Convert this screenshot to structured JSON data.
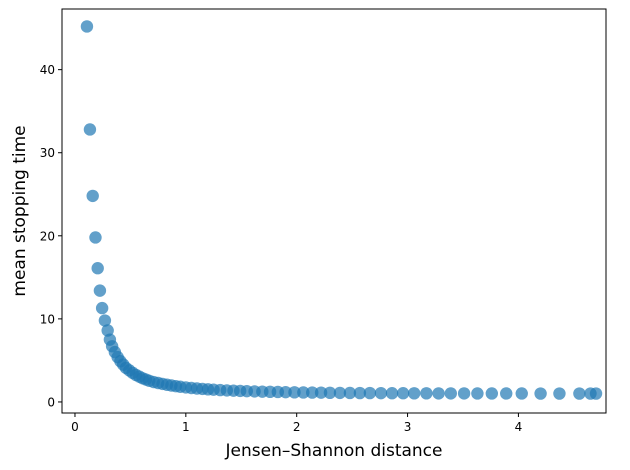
{
  "chart_data": {
    "type": "scatter",
    "title": "",
    "xlabel": "Jensen–Shannon distance",
    "ylabel": "mean stopping time",
    "xlim": [
      -0.117,
      4.79
    ],
    "ylim": [
      -1.33,
      47.3
    ],
    "xticks": [
      0,
      1,
      2,
      3,
      4
    ],
    "yticks": [
      0,
      10,
      20,
      30,
      40
    ],
    "grid": false,
    "color": "#1f77b4",
    "alpha": 0.7,
    "points": [
      [
        0.108,
        45.2
      ],
      [
        0.135,
        32.8
      ],
      [
        0.16,
        24.8
      ],
      [
        0.185,
        19.8
      ],
      [
        0.205,
        16.1
      ],
      [
        0.225,
        13.4
      ],
      [
        0.245,
        11.3
      ],
      [
        0.27,
        9.8
      ],
      [
        0.295,
        8.6
      ],
      [
        0.315,
        7.5
      ],
      [
        0.335,
        6.7
      ],
      [
        0.36,
        6.0
      ],
      [
        0.385,
        5.4
      ],
      [
        0.41,
        4.9
      ],
      [
        0.435,
        4.5
      ],
      [
        0.46,
        4.1
      ],
      [
        0.49,
        3.8
      ],
      [
        0.52,
        3.5
      ],
      [
        0.55,
        3.25
      ],
      [
        0.58,
        3.05
      ],
      [
        0.61,
        2.85
      ],
      [
        0.64,
        2.7
      ],
      [
        0.67,
        2.55
      ],
      [
        0.71,
        2.4
      ],
      [
        0.75,
        2.28
      ],
      [
        0.79,
        2.17
      ],
      [
        0.83,
        2.07
      ],
      [
        0.87,
        1.98
      ],
      [
        0.91,
        1.9
      ],
      [
        0.95,
        1.83
      ],
      [
        1.0,
        1.75
      ],
      [
        1.05,
        1.68
      ],
      [
        1.1,
        1.62
      ],
      [
        1.15,
        1.57
      ],
      [
        1.2,
        1.52
      ],
      [
        1.25,
        1.48
      ],
      [
        1.31,
        1.43
      ],
      [
        1.37,
        1.39
      ],
      [
        1.43,
        1.36
      ],
      [
        1.49,
        1.33
      ],
      [
        1.55,
        1.3
      ],
      [
        1.62,
        1.27
      ],
      [
        1.69,
        1.24
      ],
      [
        1.76,
        1.22
      ],
      [
        1.83,
        1.2
      ],
      [
        1.9,
        1.18
      ],
      [
        1.98,
        1.16
      ],
      [
        2.06,
        1.14
      ],
      [
        2.14,
        1.13
      ],
      [
        2.22,
        1.12
      ],
      [
        2.3,
        1.1
      ],
      [
        2.39,
        1.09
      ],
      [
        2.48,
        1.08
      ],
      [
        2.57,
        1.07
      ],
      [
        2.66,
        1.07
      ],
      [
        2.76,
        1.06
      ],
      [
        2.86,
        1.05
      ],
      [
        2.96,
        1.05
      ],
      [
        3.06,
        1.04
      ],
      [
        3.17,
        1.04
      ],
      [
        3.28,
        1.03
      ],
      [
        3.39,
        1.03
      ],
      [
        3.51,
        1.03
      ],
      [
        3.63,
        1.02
      ],
      [
        3.76,
        1.02
      ],
      [
        3.89,
        1.02
      ],
      [
        4.03,
        1.02
      ],
      [
        4.2,
        1.01
      ],
      [
        4.37,
        1.01
      ],
      [
        4.55,
        1.01
      ],
      [
        4.65,
        1.01
      ],
      [
        4.7,
        1.01
      ]
    ]
  }
}
